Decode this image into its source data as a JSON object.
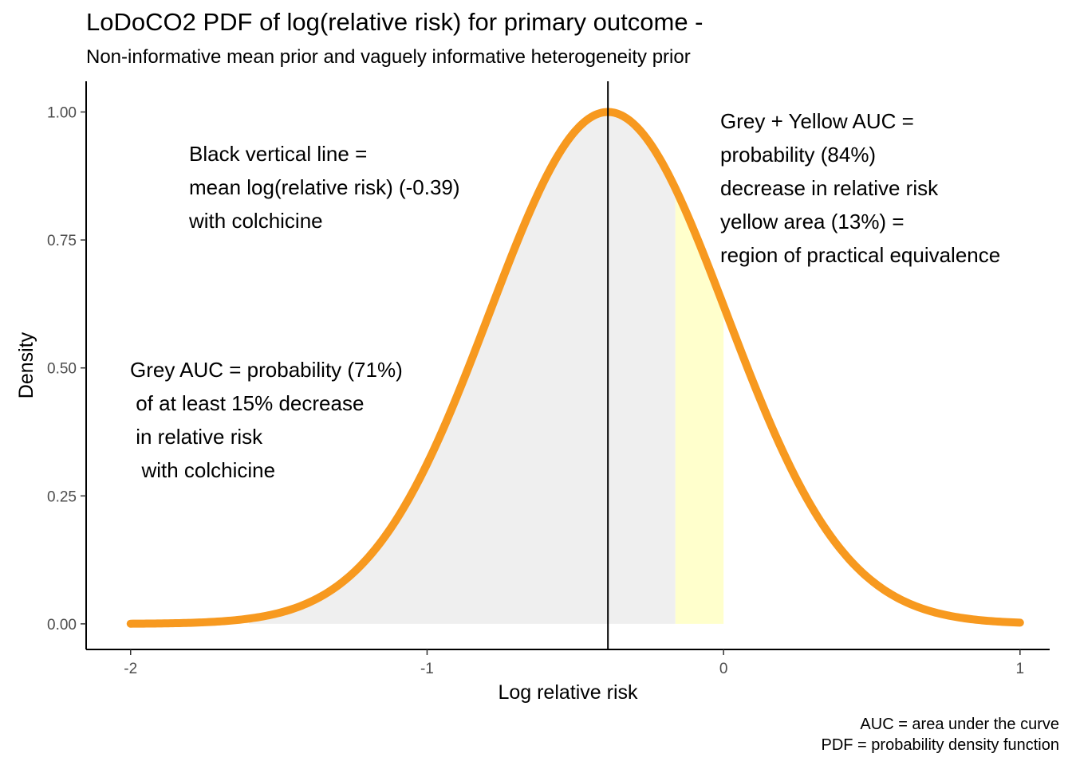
{
  "title": "LoDoCO2 PDF of log(relative risk) for primary outcome -",
  "subtitle": "Non-informative mean prior and vaguely informative heterogeneity prior",
  "caption": [
    "AUC = area under the curve",
    "PDF = probability density function"
  ],
  "colors": {
    "curve": "#F7991F",
    "curve_highlight": "#FFB000",
    "grey_area": "#EFEFEF",
    "yellow_area": "#FFFFCC",
    "vline": "#000000"
  },
  "chart_data": {
    "type": "area",
    "xlabel": "Log relative risk",
    "ylabel": "Density",
    "xlim": [
      -2.15,
      1.1
    ],
    "ylim": [
      -0.05,
      1.06
    ],
    "xticks": [
      -2,
      -1,
      0,
      1
    ],
    "xtick_labels": [
      "-2",
      "-1",
      "0",
      "1"
    ],
    "yticks": [
      0,
      0.25,
      0.5,
      0.75,
      1.0
    ],
    "ytick_labels": [
      "0.00",
      "0.25",
      "0.50",
      "0.75",
      "1.00"
    ],
    "grid": false,
    "curve": {
      "description": "scaled normal density",
      "mean": -0.39,
      "sd": 0.4,
      "peak": 1.0,
      "x_range": [
        -2,
        1
      ]
    },
    "vline": {
      "x": -0.39
    },
    "shaded_regions": [
      {
        "name": "grey",
        "x_from": -1.6,
        "x_to": -0.1625,
        "color": "#EFEFEF"
      },
      {
        "name": "yellow",
        "x_from": -0.1625,
        "x_to": 0,
        "color": "#FFFFCC"
      }
    ],
    "annotations": [
      {
        "id": "vline-note",
        "lines": [
          "Black vertical line =",
          "mean log(relative risk) (-0.39)",
          "with colchicine"
        ]
      },
      {
        "id": "grey-note",
        "lines": [
          "Grey AUC = probability (71%)",
          " of at least 15% decrease",
          " in relative risk",
          "  with colchicine"
        ]
      },
      {
        "id": "yellow-note",
        "lines": [
          "Grey + Yellow AUC =",
          "probability (84%)",
          "decrease in relative risk",
          "yellow area (13%) =",
          "region of practical equivalence"
        ]
      }
    ]
  }
}
